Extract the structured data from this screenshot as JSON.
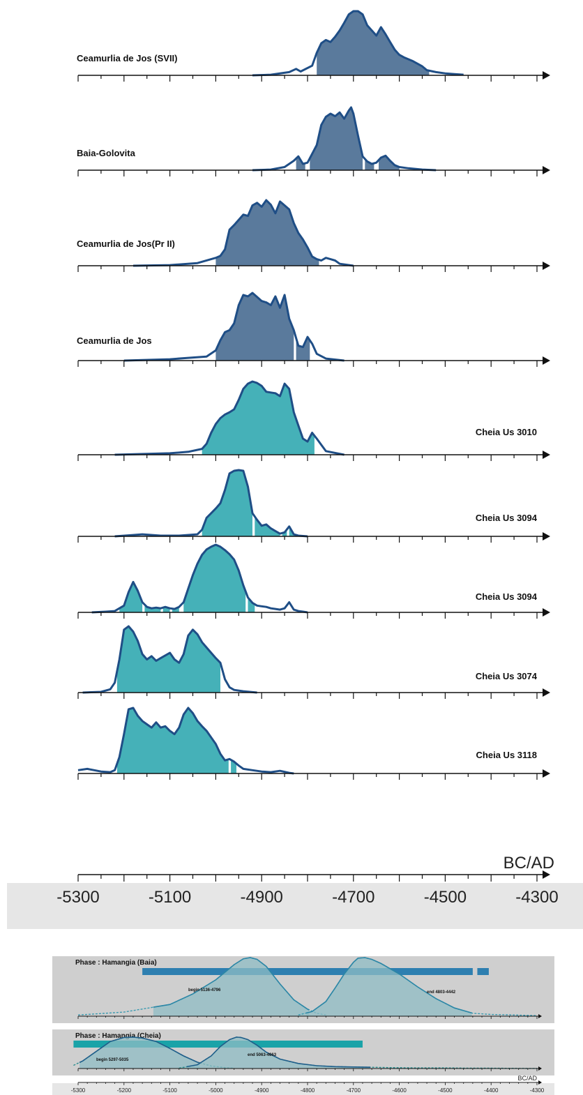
{
  "axis_label": "BC/AD",
  "main_ticks": [
    "-5300",
    "-5100",
    "-4900",
    "-4700",
    "-4500",
    "-4300"
  ],
  "small_ticks": [
    "-5300",
    "-5200",
    "-5100",
    "-5000",
    "-4900",
    "-4800",
    "-4700",
    "-4600",
    "-4500",
    "-4400",
    "-4300"
  ],
  "colors": {
    "dark_fill": "#5a7a9c",
    "teal_fill": "#45b1b8",
    "outline": "#1f4e86",
    "band_bg": "#e6e6e6",
    "phase_bg": "#cfcfcf",
    "phase_bar_baia": "#2e7fb0",
    "phase_bar_cheia": "#1aa3a8"
  },
  "chart_data": [
    {
      "type": "area",
      "xlabel": "BC/AD",
      "xlim": [
        -5300,
        -4300
      ],
      "samples": [
        {
          "name": "Ceamurlia de Jos (SVII)",
          "fill": "dark",
          "x": [
            -4920,
            -4880,
            -4840,
            -4825,
            -4815,
            -4790,
            -4780,
            -4770,
            -4760,
            -4750,
            -4740,
            -4730,
            -4720,
            -4710,
            -4700,
            -4690,
            -4680,
            -4670,
            -4660,
            -4650,
            -4640,
            -4630,
            -4620,
            -4610,
            -4600,
            -4590,
            -4580,
            -4570,
            -4560,
            -4550,
            -4540,
            -4520,
            -4500,
            -4480,
            -4460
          ],
          "p": [
            0,
            0.01,
            0.05,
            0.1,
            0.06,
            0.15,
            0.35,
            0.5,
            0.55,
            0.52,
            0.6,
            0.7,
            0.82,
            0.95,
            1.0,
            1.0,
            0.95,
            0.78,
            0.7,
            0.62,
            0.75,
            0.64,
            0.52,
            0.4,
            0.32,
            0.28,
            0.25,
            0.22,
            0.18,
            0.14,
            0.08,
            0.05,
            0.03,
            0.02,
            0.01
          ],
          "hpd": [
            [
              -4780,
              -4535
            ]
          ]
        },
        {
          "name": "Baia-Golovita",
          "fill": "dark",
          "x": [
            -4920,
            -4880,
            -4850,
            -4830,
            -4820,
            -4810,
            -4800,
            -4780,
            -4770,
            -4760,
            -4750,
            -4740,
            -4730,
            -4720,
            -4710,
            -4705,
            -4700,
            -4690,
            -4680,
            -4670,
            -4660,
            -4650,
            -4640,
            -4630,
            -4620,
            -4610,
            -4600,
            -4580,
            -4550,
            -4520
          ],
          "p": [
            0,
            0.01,
            0.05,
            0.15,
            0.22,
            0.1,
            0.12,
            0.4,
            0.72,
            0.85,
            0.9,
            0.86,
            0.92,
            0.82,
            0.95,
            1.0,
            0.9,
            0.55,
            0.22,
            0.14,
            0.1,
            0.12,
            0.2,
            0.23,
            0.15,
            0.08,
            0.05,
            0.03,
            0.01,
            0
          ],
          "hpd": [
            [
              -4825,
              -4805
            ],
            [
              -4795,
              -4680
            ],
            [
              -4675,
              -4655
            ],
            [
              -4645,
              -4600
            ]
          ]
        },
        {
          "name": "Ceamurlia de Jos(Pr II)",
          "fill": "dark",
          "x": [
            -5180,
            -5100,
            -5040,
            -5000,
            -4990,
            -4980,
            -4970,
            -4960,
            -4950,
            -4940,
            -4930,
            -4920,
            -4910,
            -4900,
            -4890,
            -4880,
            -4870,
            -4860,
            -4850,
            -4840,
            -4830,
            -4820,
            -4810,
            -4800,
            -4790,
            -4780,
            -4770,
            -4760,
            -4750,
            -4740,
            -4730,
            -4700
          ],
          "p": [
            0,
            0.01,
            0.04,
            0.12,
            0.15,
            0.25,
            0.55,
            0.62,
            0.7,
            0.78,
            0.76,
            0.92,
            0.96,
            0.9,
            1.0,
            0.93,
            0.8,
            0.98,
            0.92,
            0.86,
            0.65,
            0.5,
            0.4,
            0.28,
            0.14,
            0.1,
            0.08,
            0.12,
            0.1,
            0.08,
            0.03,
            0
          ],
          "hpd": [
            [
              -5000,
              -4775
            ]
          ]
        },
        {
          "name": "Ceamurlia de Jos",
          "fill": "dark",
          "x": [
            -5200,
            -5100,
            -5060,
            -5020,
            -5000,
            -4990,
            -4980,
            -4970,
            -4960,
            -4950,
            -4940,
            -4930,
            -4920,
            -4910,
            -4900,
            -4890,
            -4880,
            -4870,
            -4860,
            -4850,
            -4840,
            -4830,
            -4820,
            -4810,
            -4800,
            -4790,
            -4780,
            -4760,
            -4720
          ],
          "p": [
            0,
            0.02,
            0.04,
            0.06,
            0.15,
            0.3,
            0.42,
            0.45,
            0.55,
            0.82,
            0.97,
            0.95,
            1.0,
            0.94,
            0.88,
            0.86,
            0.82,
            0.95,
            0.78,
            0.97,
            0.62,
            0.45,
            0.22,
            0.2,
            0.35,
            0.25,
            0.1,
            0.03,
            0
          ],
          "hpd": [
            [
              -5000,
              -4830
            ],
            [
              -4825,
              -4795
            ]
          ]
        },
        {
          "name": "Cheia Us 3010",
          "fill": "teal",
          "x": [
            -5220,
            -5100,
            -5060,
            -5030,
            -5020,
            -5010,
            -5000,
            -4990,
            -4980,
            -4970,
            -4960,
            -4950,
            -4940,
            -4930,
            -4920,
            -4910,
            -4900,
            -4890,
            -4880,
            -4870,
            -4860,
            -4850,
            -4840,
            -4830,
            -4820,
            -4810,
            -4800,
            -4790,
            -4780,
            -4760,
            -4720
          ],
          "p": [
            0,
            0.02,
            0.04,
            0.08,
            0.15,
            0.3,
            0.42,
            0.5,
            0.55,
            0.58,
            0.62,
            0.75,
            0.9,
            0.97,
            1.0,
            0.98,
            0.94,
            0.86,
            0.85,
            0.84,
            0.8,
            0.97,
            0.9,
            0.58,
            0.4,
            0.22,
            0.18,
            0.3,
            0.22,
            0.05,
            0
          ],
          "hpd": [
            [
              -5030,
              -4785
            ]
          ]
        },
        {
          "name": "Cheia Us 3094",
          "fill": "teal",
          "x": [
            -5220,
            -5180,
            -5160,
            -5120,
            -5080,
            -5040,
            -5030,
            -5020,
            -5010,
            -5000,
            -4990,
            -4980,
            -4970,
            -4960,
            -4950,
            -4940,
            -4930,
            -4920,
            -4910,
            -4900,
            -4890,
            -4880,
            -4870,
            -4860,
            -4850,
            -4840,
            -4830,
            -4820,
            -4800
          ],
          "p": [
            0,
            0.02,
            0.03,
            0.01,
            0.01,
            0.03,
            0.1,
            0.28,
            0.35,
            0.42,
            0.5,
            0.7,
            0.95,
            0.99,
            1.0,
            0.99,
            0.75,
            0.35,
            0.25,
            0.16,
            0.18,
            0.12,
            0.08,
            0.04,
            0.06,
            0.15,
            0.03,
            0.01,
            0
          ],
          "hpd": [
            [
              -5030,
              -4920
            ],
            [
              -4915,
              -4860
            ],
            [
              -4855,
              -4845
            ],
            [
              -4840,
              -4820
            ]
          ]
        },
        {
          "name": "Cheia Us 3094",
          "fill": "teal",
          "x": [
            -5270,
            -5240,
            -5220,
            -5200,
            -5190,
            -5180,
            -5170,
            -5160,
            -5150,
            -5140,
            -5130,
            -5120,
            -5110,
            -5100,
            -5090,
            -5080,
            -5070,
            -5060,
            -5050,
            -5040,
            -5030,
            -5020,
            -5010,
            -5000,
            -4990,
            -4980,
            -4970,
            -4960,
            -4950,
            -4940,
            -4930,
            -4920,
            -4910,
            -4900,
            -4890,
            -4880,
            -4870,
            -4860,
            -4850,
            -4840,
            -4830,
            -4820,
            -4810,
            -4800
          ],
          "p": [
            0,
            0.01,
            0.02,
            0.1,
            0.3,
            0.45,
            0.32,
            0.15,
            0.08,
            0.06,
            0.07,
            0.06,
            0.08,
            0.06,
            0.05,
            0.08,
            0.15,
            0.35,
            0.55,
            0.72,
            0.85,
            0.93,
            0.97,
            1.0,
            0.97,
            0.92,
            0.86,
            0.78,
            0.62,
            0.4,
            0.22,
            0.14,
            0.1,
            0.09,
            0.08,
            0.06,
            0.05,
            0.04,
            0.06,
            0.15,
            0.04,
            0.02,
            0.01,
            0
          ],
          "hpd": [
            [
              -5210,
              -5160
            ],
            [
              -5155,
              -5120
            ],
            [
              -5115,
              -5100
            ],
            [
              -5095,
              -5080
            ],
            [
              -5070,
              -4935
            ],
            [
              -4930,
              -4915
            ]
          ]
        },
        {
          "name": "Cheia Us 3074",
          "fill": "teal",
          "x": [
            -5290,
            -5250,
            -5230,
            -5220,
            -5210,
            -5200,
            -5190,
            -5180,
            -5170,
            -5160,
            -5150,
            -5140,
            -5130,
            -5120,
            -5110,
            -5100,
            -5090,
            -5080,
            -5070,
            -5060,
            -5050,
            -5040,
            -5030,
            -5020,
            -5010,
            -5000,
            -4990,
            -4980,
            -4970,
            -4960,
            -4940,
            -4910
          ],
          "p": [
            0,
            0.01,
            0.05,
            0.15,
            0.5,
            0.95,
            1.0,
            0.92,
            0.78,
            0.58,
            0.5,
            0.55,
            0.48,
            0.52,
            0.56,
            0.6,
            0.5,
            0.45,
            0.58,
            0.86,
            0.95,
            0.88,
            0.76,
            0.68,
            0.6,
            0.52,
            0.45,
            0.2,
            0.08,
            0.04,
            0.02,
            0
          ],
          "hpd": [
            [
              -5215,
              -4990
            ]
          ]
        },
        {
          "name": "Cheia Us 3118",
          "fill": "teal",
          "x": [
            -5300,
            -5280,
            -5250,
            -5230,
            -5220,
            -5210,
            -5200,
            -5190,
            -5180,
            -5170,
            -5160,
            -5150,
            -5140,
            -5130,
            -5120,
            -5110,
            -5100,
            -5090,
            -5080,
            -5070,
            -5060,
            -5050,
            -5040,
            -5030,
            -5020,
            -5010,
            -5000,
            -4990,
            -4980,
            -4970,
            -4960,
            -4950,
            -4940,
            -4920,
            -4900,
            -4880,
            -4860,
            -4840,
            -4830
          ],
          "p": [
            0.05,
            0.07,
            0.03,
            0.02,
            0.05,
            0.25,
            0.6,
            0.98,
            1.0,
            0.88,
            0.8,
            0.75,
            0.7,
            0.78,
            0.7,
            0.72,
            0.65,
            0.6,
            0.7,
            0.9,
            1.0,
            0.92,
            0.8,
            0.72,
            0.65,
            0.55,
            0.45,
            0.3,
            0.2,
            0.22,
            0.18,
            0.12,
            0.07,
            0.05,
            0.03,
            0.02,
            0.04,
            0.01,
            0
          ],
          "hpd": [
            [
              -5215,
              -4972
            ],
            [
              -4967,
              -4955
            ]
          ]
        }
      ]
    },
    {
      "type": "area",
      "xlabel": "BC/AD",
      "xlim": [
        -5300,
        -4300
      ],
      "phases": [
        {
          "title": "Phase : Hamangia (Baia)",
          "range_bars": [
            [
              -5160,
              -4440
            ],
            [
              -4430,
              -4405
            ]
          ],
          "begin": {
            "label": "begin 5136-4796",
            "x": [
              -5300,
              -5200,
              -5100,
              -5050,
              -5000,
              -4960,
              -4940,
              -4925,
              -4910,
              -4890,
              -4860,
              -4830,
              -4800,
              -4780,
              -4760
            ],
            "p": [
              0.02,
              0.07,
              0.2,
              0.38,
              0.62,
              0.88,
              0.98,
              1.0,
              0.97,
              0.85,
              0.55,
              0.28,
              0.12,
              0.05,
              0.02
            ],
            "hpd": [
              -5136,
              -4796
            ]
          },
          "end": {
            "label": "end 4803-4442",
            "x": [
              -4820,
              -4790,
              -4760,
              -4740,
              -4720,
              -4700,
              -4690,
              -4675,
              -4660,
              -4640,
              -4600,
              -4560,
              -4520,
              -4480,
              -4440,
              -4400,
              -4350,
              -4300
            ],
            "p": [
              0.02,
              0.08,
              0.25,
              0.48,
              0.72,
              0.92,
              0.99,
              1.0,
              0.97,
              0.9,
              0.72,
              0.5,
              0.3,
              0.14,
              0.05,
              0.03,
              0.02,
              0.01
            ],
            "hpd": [
              -4803,
              -4442
            ]
          }
        },
        {
          "title": "Phase : Hamangia (Cheia)",
          "range_bars": [
            [
              -5310,
              -4680
            ]
          ],
          "begin": {
            "label": "begin 5297-5035",
            "x": [
              -5310,
              -5290,
              -5260,
              -5230,
              -5200,
              -5180,
              -5160,
              -5130,
              -5100,
              -5070,
              -5040,
              -5010,
              -4980,
              -4960
            ],
            "p": [
              0.1,
              0.24,
              0.55,
              0.86,
              0.99,
              1.0,
              0.97,
              0.86,
              0.64,
              0.4,
              0.2,
              0.08,
              0.03,
              0.01
            ],
            "hpd": [
              -5297,
              -5035
            ]
          },
          "end": {
            "label": "end 5063-4663",
            "x": [
              -5080,
              -5040,
              -5010,
              -4990,
              -4970,
              -4955,
              -4945,
              -4930,
              -4910,
              -4890,
              -4860,
              -4820,
              -4780,
              -4740,
              -4700,
              -4660,
              -4620,
              -4560,
              -4500,
              -4450,
              -4400,
              -4300
            ],
            "p": [
              0.01,
              0.12,
              0.4,
              0.7,
              0.92,
              1.0,
              0.99,
              0.92,
              0.74,
              0.52,
              0.3,
              0.16,
              0.09,
              0.06,
              0.05,
              0.04,
              0.03,
              0.02,
              0.02,
              0.01,
              0.01,
              0
            ],
            "hpd": [
              -5063,
              -4663
            ]
          }
        }
      ]
    }
  ]
}
